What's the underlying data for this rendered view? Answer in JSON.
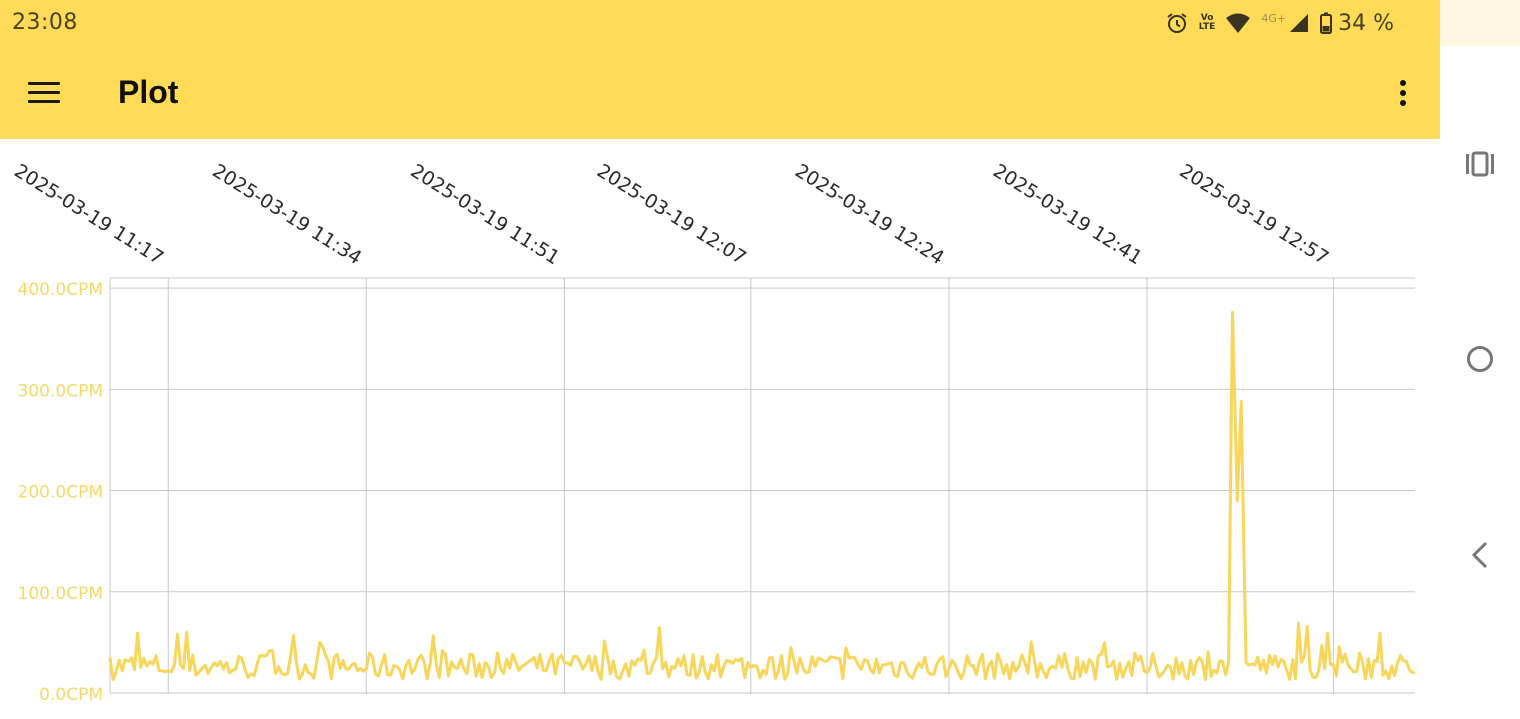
{
  "status_bar": {
    "time": "23:08",
    "battery": "34 %",
    "network_label": "4G+",
    "volte_label_top": "Vo",
    "volte_label_bottom": "LTE",
    "icons": [
      "alarm-icon",
      "volte-icon",
      "wifi-icon",
      "signal-icon",
      "battery-icon"
    ]
  },
  "app_bar": {
    "title": "Plot",
    "menu_icon": "hamburger-menu-icon",
    "overflow_icon": "more-vert-icon",
    "background": "#ffdb58"
  },
  "nav_bar": {
    "icons": [
      "recent-apps-icon",
      "home-icon",
      "back-icon"
    ]
  },
  "colors": {
    "accent": "#ffdb58",
    "series": "#f8d65c",
    "y_label": "#f5d86a",
    "grid": "#c8c8c8"
  },
  "chart_data": {
    "type": "line",
    "title": "",
    "xlabel": "",
    "ylabel": "",
    "x_start": "2025-03-19 11:12",
    "x_end": "2025-03-19 13:04",
    "y_unit": "CPM",
    "ylim": [
      0,
      410
    ],
    "y_ticks": [
      0,
      100,
      200,
      300,
      400
    ],
    "y_tick_labels": [
      "0.0CPM",
      "100.0CPM",
      "200.0CPM",
      "300.0CPM",
      "400.0CPM"
    ],
    "x_tick_labels": [
      "2025-03-19 11:17",
      "2025-03-19 11:34",
      "2025-03-19 11:51",
      "2025-03-19 12:07",
      "2025-03-19 12:24",
      "2025-03-19 12:41",
      "2025-03-19 12:57"
    ],
    "grid": true,
    "legend": "none",
    "baseline_mean": 25,
    "series": [
      {
        "values_note_excluded": false,
        "points": [
          [
            "2025-03-19 11:12",
            35
          ],
          [
            "2025-03-19 11:17",
            22
          ],
          [
            "2025-03-19 11:22",
            30
          ],
          [
            "2025-03-19 11:27",
            18
          ],
          [
            "2025-03-19 11:30",
            50
          ],
          [
            "2025-03-19 11:34",
            24
          ],
          [
            "2025-03-19 11:40",
            28
          ],
          [
            "2025-03-19 11:45",
            20
          ],
          [
            "2025-03-19 11:51",
            30
          ],
          [
            "2025-03-19 11:56",
            22
          ],
          [
            "2025-03-19 12:01",
            27
          ],
          [
            "2025-03-19 12:07",
            25
          ],
          [
            "2025-03-19 12:12",
            21
          ],
          [
            "2025-03-19 12:17",
            32
          ],
          [
            "2025-03-19 12:24",
            24
          ],
          [
            "2025-03-19 12:30",
            26
          ],
          [
            "2025-03-19 12:35",
            35
          ],
          [
            "2025-03-19 12:41",
            20
          ],
          [
            "2025-03-19 12:45",
            18
          ],
          [
            "2025-03-19 12:48",
            30
          ],
          [
            "2025-03-19 12:48:20",
            376
          ],
          [
            "2025-03-19 12:48:45",
            190
          ],
          [
            "2025-03-19 12:49:05",
            288
          ],
          [
            "2025-03-19 12:49:30",
            30
          ],
          [
            "2025-03-19 12:53",
            22
          ],
          [
            "2025-03-19 12:57",
            28
          ],
          [
            "2025-03-19 13:00",
            34
          ],
          [
            "2025-03-19 13:04",
            20
          ]
        ]
      }
    ]
  }
}
